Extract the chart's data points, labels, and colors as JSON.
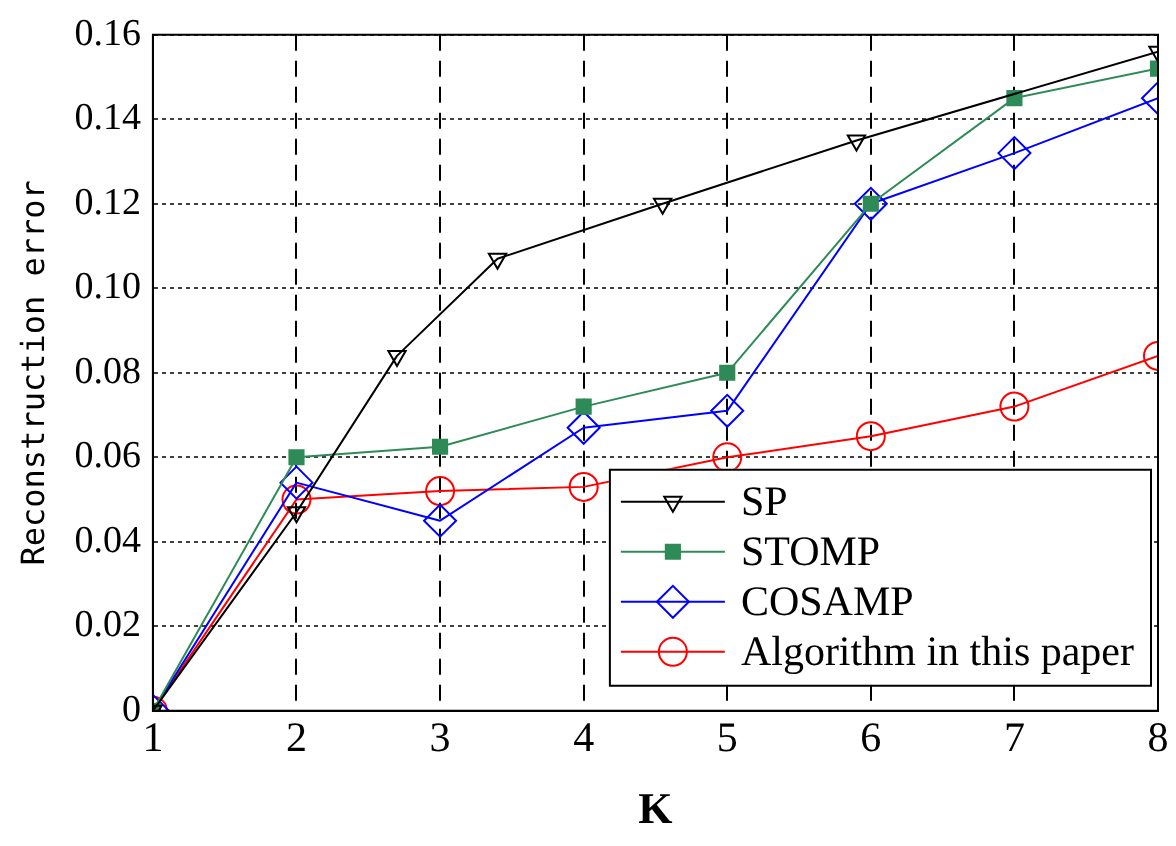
{
  "chart_data": {
    "type": "line",
    "xlabel": "K",
    "ylabel": "Reconstruction error",
    "xlim": [
      1,
      8
    ],
    "xticks": [
      1,
      2,
      3,
      4,
      5,
      6,
      7,
      8
    ],
    "ylim": [
      0,
      0.16
    ],
    "yticks": [
      0,
      0.02,
      0.04,
      0.06,
      0.08,
      {
        "value": 0.1,
        "label": "0.10"
      },
      0.12,
      0.14,
      0.16
    ],
    "grid": true,
    "legend": "bottom right",
    "line_style": "solid",
    "series": [
      {
        "name": "SP",
        "color": "#000000",
        "marker": "triangle",
        "x": [
          1,
          2,
          2.7,
          3.4,
          4.55,
          5.9,
          8
        ],
        "values": [
          0,
          0.047,
          0.084,
          0.107,
          0.12,
          0.135,
          0.156
        ]
      },
      {
        "name": "STOMP",
        "color": "#2e8b57",
        "marker": "square",
        "x": [
          1,
          2,
          3,
          4,
          5,
          6,
          7,
          8
        ],
        "values": [
          0,
          0.06,
          0.0625,
          0.072,
          0.08,
          0.12,
          0.145,
          0.152
        ]
      },
      {
        "name": "COSAMP",
        "color": "#0000ff",
        "marker": "diamond",
        "x": [
          1,
          2,
          3,
          4,
          5,
          6,
          7,
          8
        ],
        "values": [
          0,
          0.054,
          0.045,
          0.067,
          0.071,
          0.12,
          0.132,
          0.145
        ]
      },
      {
        "name": "Algorithm in this paper",
        "color": "#ff0000",
        "marker": "circle",
        "x": [
          1,
          2,
          3,
          4,
          5,
          6,
          7,
          8
        ],
        "values": [
          0,
          0.05,
          0.052,
          0.053,
          0.06,
          0.065,
          0.072,
          0.084
        ]
      }
    ]
  }
}
